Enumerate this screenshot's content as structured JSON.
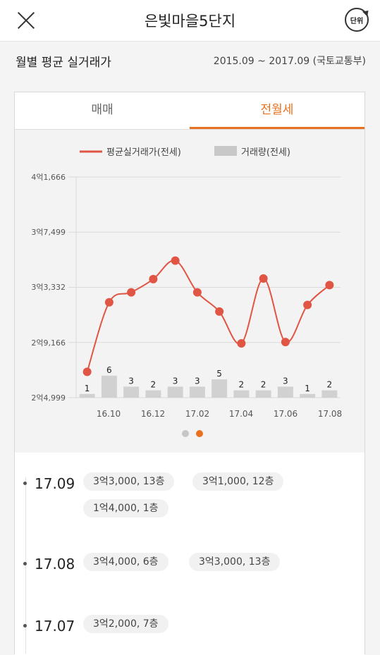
{
  "header": {
    "title": "은빛마을5단지",
    "unit_label": "단위"
  },
  "subheader": {
    "label": "월별 평균 실거래가",
    "range": "2015.09 ~ 2017.09 (국토교통부)"
  },
  "tabs": [
    {
      "label": "매매",
      "active": false
    },
    {
      "label": "전월세",
      "active": true
    }
  ],
  "chart_data": {
    "type": "line",
    "legend": [
      {
        "label": "평균실거래가(전세)",
        "color": "#e05544",
        "kind": "line"
      },
      {
        "label": "거래량(전세)",
        "color": "#c9c8c8",
        "kind": "bar"
      }
    ],
    "y_tick_labels": [
      "4억1,666",
      "3억7,499",
      "3억3,332",
      "2억9,166",
      "2억4,999"
    ],
    "ylim": [
      24999,
      41666
    ],
    "x_tick_labels": [
      "16.10",
      "16.12",
      "17.02",
      "17.04",
      "17.06",
      "17.08"
    ],
    "months": [
      "16.09",
      "16.10",
      "16.11",
      "16.12",
      "17.01",
      "17.02",
      "17.03",
      "17.04",
      "17.05",
      "17.06",
      "17.07",
      "17.08"
    ],
    "price": [
      26950,
      32200,
      32950,
      33950,
      35350,
      32950,
      31500,
      29100,
      34000,
      29200,
      32000,
      33500
    ],
    "volume": [
      1,
      6,
      3,
      2,
      3,
      3,
      5,
      2,
      2,
      3,
      1,
      2
    ],
    "page_dots": 2,
    "active_page": 1
  },
  "entries": [
    {
      "month": "17.09",
      "deals": [
        "3억3,000, 13층",
        "3억1,000, 12층",
        "1억4,000, 1층"
      ]
    },
    {
      "month": "17.08",
      "deals": [
        "3억4,000, 6층",
        "3억3,000, 13층"
      ]
    },
    {
      "month": "17.07",
      "deals": [
        "3억2,000, 7층"
      ]
    }
  ]
}
